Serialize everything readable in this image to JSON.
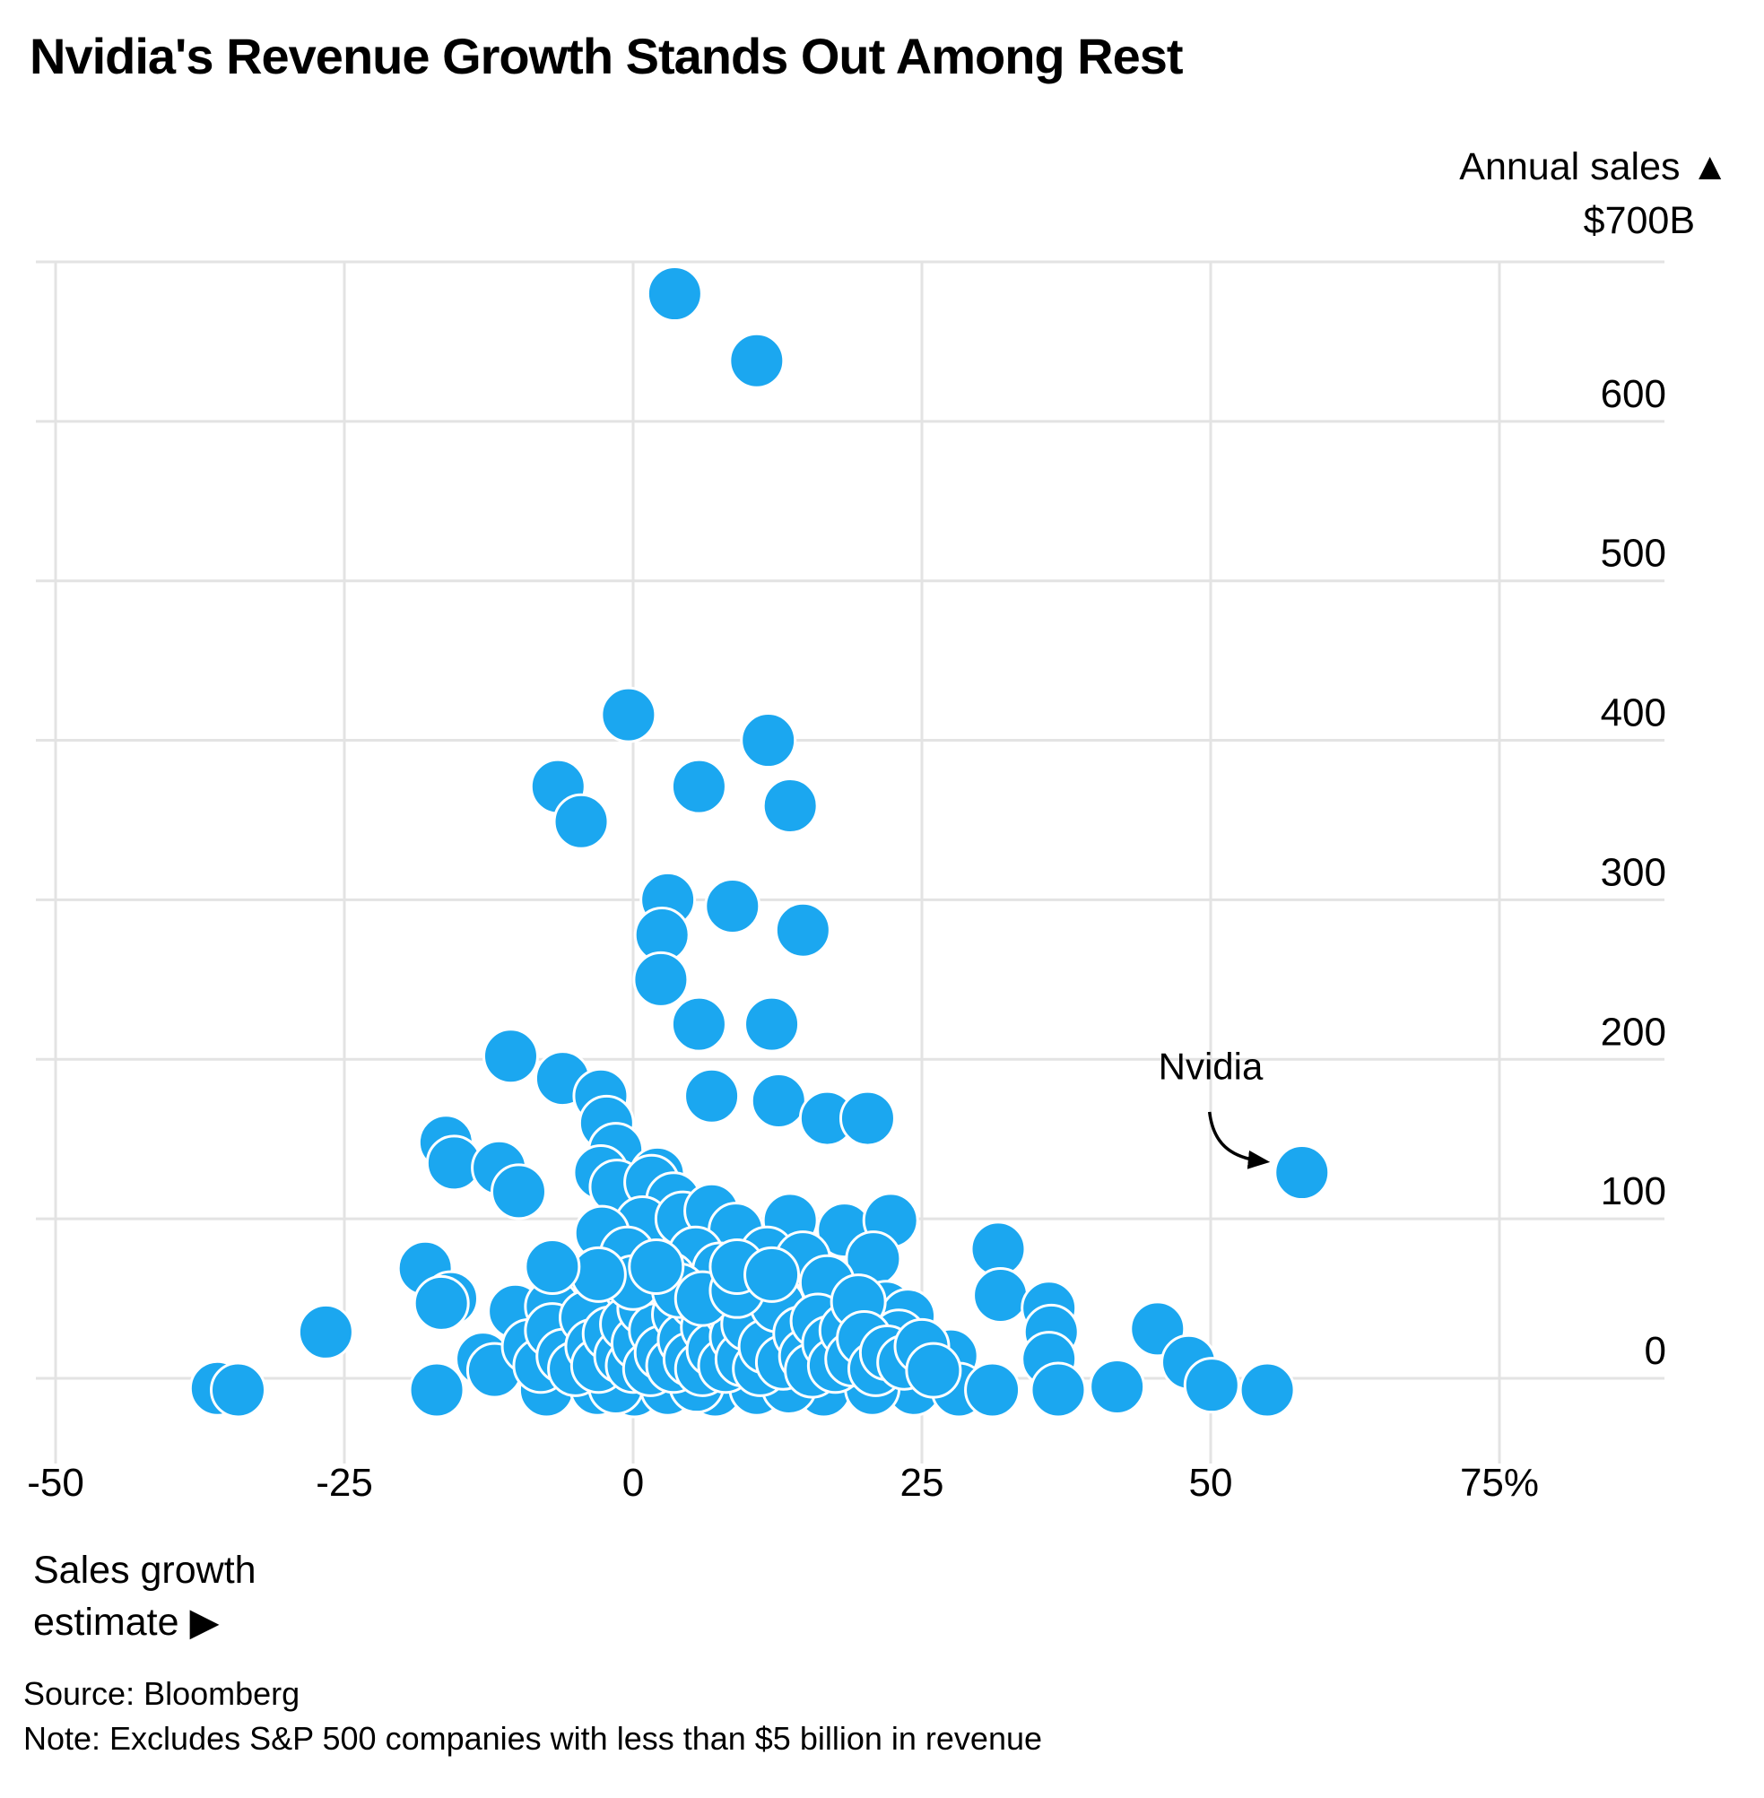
{
  "title": "Nvidia's Revenue Growth Stands Out Among Rest",
  "axes": {
    "y_label": "Annual sales ▲",
    "y_top_value": "$700B",
    "x_label_line1": "Sales growth",
    "x_label_line2": "estimate ▶",
    "x_ticks": [
      {
        "value": -50,
        "label": "-50"
      },
      {
        "value": -25,
        "label": "-25"
      },
      {
        "value": 0,
        "label": "0"
      },
      {
        "value": 25,
        "label": "25"
      },
      {
        "value": 50,
        "label": "50"
      },
      {
        "value": 75,
        "label": "75%"
      }
    ],
    "y_ticks": [
      {
        "value": 600,
        "label": "600"
      },
      {
        "value": 500,
        "label": "500"
      },
      {
        "value": 400,
        "label": "400"
      },
      {
        "value": 300,
        "label": "300"
      },
      {
        "value": 200,
        "label": "200"
      },
      {
        "value": 100,
        "label": "100"
      },
      {
        "value": 0,
        "label": "0"
      }
    ]
  },
  "footer": {
    "source": "Source: Bloomberg",
    "note": "Note: Excludes S&P 500 companies with less than $5 billion in revenue"
  },
  "annotation": {
    "label": "Nvidia",
    "label_growth": 50,
    "label_sales": 196,
    "arrow_from_growth": 49.9,
    "arrow_from_sales": 167,
    "arrow_to_growth": 54.6,
    "arrow_to_sales": 136
  },
  "colors": {
    "dot": "#1BA7F0",
    "dot_stroke": "#FFFFFF",
    "grid": "#E3E3E3",
    "text": "#000000",
    "background": "#FFFFFF"
  },
  "chart_data": {
    "type": "scatter",
    "title": "Nvidia's Revenue Growth Stands Out Among Rest",
    "xlabel": "Sales growth estimate (%)",
    "ylabel": "Annual sales ($B)",
    "xlim": [
      -52,
      89
    ],
    "ylim": [
      -30,
      700
    ],
    "grid": true,
    "legend": "none",
    "x_tick_values": [
      -50,
      -25,
      0,
      25,
      50,
      75
    ],
    "y_tick_values": [
      0,
      100,
      200,
      300,
      400,
      500,
      600,
      700
    ],
    "nvidia_point": {
      "growth": 57.9,
      "sales": 129
    },
    "points": [
      [
        3.6,
        680
      ],
      [
        10.7,
        638
      ],
      [
        -0.4,
        416
      ],
      [
        11.7,
        400
      ],
      [
        -6.5,
        371
      ],
      [
        5.7,
        371
      ],
      [
        -4.5,
        349
      ],
      [
        13.6,
        359
      ],
      [
        3.0,
        300
      ],
      [
        8.6,
        296
      ],
      [
        14.7,
        281
      ],
      [
        2.5,
        278
      ],
      [
        2.4,
        250
      ],
      [
        5.7,
        222
      ],
      [
        12.0,
        222
      ],
      [
        -10.6,
        202
      ],
      [
        -6.1,
        188
      ],
      [
        -2.8,
        177
      ],
      [
        6.8,
        177
      ],
      [
        12.6,
        174
      ],
      [
        16.8,
        163
      ],
      [
        20.3,
        163
      ],
      [
        -2.3,
        160
      ],
      [
        -16.2,
        148
      ],
      [
        -1.5,
        143
      ],
      [
        -15.5,
        135
      ],
      [
        -11.6,
        132
      ],
      [
        -2.8,
        129
      ],
      [
        2.1,
        128
      ],
      [
        57.9,
        129
      ],
      [
        -9.9,
        117
      ],
      [
        -1.4,
        120
      ],
      [
        1.6,
        123
      ],
      [
        3.5,
        112
      ],
      [
        0.8,
        97
      ],
      [
        4.3,
        100
      ],
      [
        6.8,
        105
      ],
      [
        8.9,
        93
      ],
      [
        13.6,
        99
      ],
      [
        18.3,
        93
      ],
      [
        22.3,
        99
      ],
      [
        -2.7,
        91
      ],
      [
        -0.5,
        78
      ],
      [
        5.4,
        78
      ],
      [
        11.6,
        78
      ],
      [
        14.7,
        75
      ],
      [
        20.8,
        75
      ],
      [
        31.6,
        81
      ],
      [
        7.5,
        68
      ],
      [
        10.3,
        57
      ],
      [
        16.8,
        60
      ],
      [
        3.1,
        62
      ],
      [
        0.5,
        52
      ],
      [
        -4.1,
        55
      ],
      [
        -1.9,
        36
      ],
      [
        -5.6,
        25
      ],
      [
        12.1,
        39
      ],
      [
        14.0,
        25
      ],
      [
        21.9,
        44
      ],
      [
        -26.6,
        29
      ],
      [
        -36.0,
        1
      ],
      [
        -34.2,
        0
      ],
      [
        -18.0,
        69
      ],
      [
        -15.8,
        50
      ],
      [
        -16.6,
        47
      ],
      [
        -10.2,
        42
      ],
      [
        -7.0,
        45
      ],
      [
        31.8,
        52
      ],
      [
        36.0,
        44
      ],
      [
        36.2,
        29
      ],
      [
        36.0,
        12
      ],
      [
        27.5,
        14
      ],
      [
        23.8,
        39
      ],
      [
        23.0,
        26
      ],
      [
        24.3,
        1
      ],
      [
        28.2,
        0
      ],
      [
        31.1,
        0
      ],
      [
        36.8,
        0
      ],
      [
        41.9,
        2
      ],
      [
        45.4,
        31
      ],
      [
        48.1,
        10
      ],
      [
        50.1,
        3
      ],
      [
        54.9,
        0
      ],
      [
        -17.0,
        0
      ],
      [
        -7.5,
        0
      ],
      [
        -3.1,
        1
      ],
      [
        0.1,
        0
      ],
      [
        3.0,
        1
      ],
      [
        7.1,
        0
      ],
      [
        10.7,
        1
      ],
      [
        16.5,
        0
      ],
      [
        20.7,
        1
      ],
      [
        13.5,
        2
      ],
      [
        5.5,
        3
      ],
      [
        -1.5,
        2
      ],
      [
        -13.0,
        12
      ],
      [
        -12.0,
        5
      ],
      [
        -9.0,
        20
      ],
      [
        -8.0,
        8
      ],
      [
        -7.0,
        30
      ],
      [
        -6.0,
        14
      ],
      [
        -5.0,
        6
      ],
      [
        -4.0,
        38
      ],
      [
        -3.5,
        20
      ],
      [
        -3.0,
        8
      ],
      [
        -2.0,
        28
      ],
      [
        -1.0,
        14
      ],
      [
        -0.5,
        34
      ],
      [
        0.0,
        8
      ],
      [
        0.5,
        22
      ],
      [
        1.0,
        44
      ],
      [
        1.5,
        6
      ],
      [
        2.0,
        30
      ],
      [
        2.5,
        16
      ],
      [
        3.5,
        8
      ],
      [
        4.0,
        40
      ],
      [
        4.5,
        24
      ],
      [
        5.0,
        12
      ],
      [
        5.5,
        48
      ],
      [
        6.0,
        6
      ],
      [
        6.5,
        32
      ],
      [
        7.0,
        18
      ],
      [
        8.0,
        8
      ],
      [
        8.5,
        42
      ],
      [
        9.0,
        26
      ],
      [
        9.5,
        12
      ],
      [
        10.0,
        34
      ],
      [
        11.0,
        6
      ],
      [
        11.5,
        20
      ],
      [
        12.5,
        46
      ],
      [
        13.0,
        10
      ],
      [
        14.5,
        28
      ],
      [
        15.0,
        14
      ],
      [
        15.5,
        5
      ],
      [
        16.0,
        36
      ],
      [
        17.0,
        22
      ],
      [
        17.5,
        8
      ],
      [
        18.5,
        30
      ],
      [
        19.0,
        12
      ],
      [
        19.5,
        48
      ],
      [
        20.0,
        25
      ],
      [
        21.0,
        6
      ],
      [
        22.0,
        16
      ],
      [
        23.5,
        10
      ],
      [
        25.0,
        20
      ],
      [
        26.0,
        5
      ],
      [
        0.0,
        60
      ],
      [
        -3.0,
        65
      ],
      [
        4.0,
        55
      ],
      [
        6.0,
        50
      ],
      [
        9.0,
        55
      ],
      [
        2.0,
        70
      ],
      [
        -7.0,
        70
      ],
      [
        9.0,
        70
      ],
      [
        12.0,
        65
      ]
    ]
  }
}
